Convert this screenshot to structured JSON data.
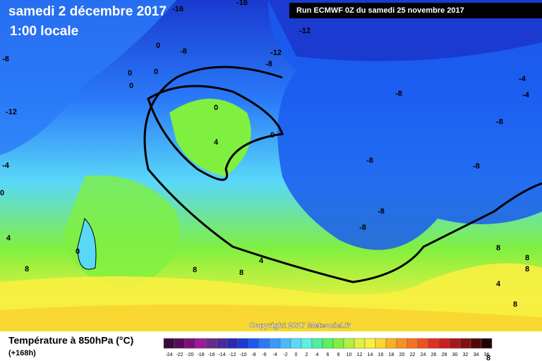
{
  "header": {
    "title": "samedi 2 décembre 2017",
    "subtitle": "1:00 locale",
    "run": "Run ECMWF 0Z du samedi 25 novembre 2017"
  },
  "map": {
    "copyright": "Copyright 2017 Meteociel.fr",
    "labels": [
      "-16",
      "-16",
      "-12",
      "-8",
      "0",
      "-8",
      "-12",
      "-8",
      "0",
      "0",
      "0",
      "-12",
      "-8",
      "-4",
      "-4",
      "0",
      "-8",
      "0",
      "4",
      "-8",
      "-8",
      "-4",
      "0",
      "-8",
      "-8",
      "4",
      "0",
      "8",
      "4",
      "8",
      "8",
      "8",
      "8",
      "8",
      "4",
      "8",
      "8"
    ]
  },
  "legend": {
    "title": "Température à 850hPa (°C)",
    "lead": "(+168h)",
    "ticks": [
      -24,
      -22,
      -20,
      -18,
      -16,
      -14,
      -12,
      -10,
      -8,
      -6,
      -4,
      -2,
      0,
      2,
      4,
      6,
      8,
      10,
      12,
      14,
      16,
      18,
      20,
      22,
      24,
      26,
      28,
      30,
      32,
      34,
      36
    ],
    "colors": [
      "#3a0a3a",
      "#5a0a5a",
      "#7a0f7a",
      "#9a1a9a",
      "#6a2a8a",
      "#4a2a9a",
      "#2a2ab0",
      "#1a3ad0",
      "#1a5af0",
      "#2a7af8",
      "#3a9af8",
      "#4ab8f8",
      "#5ad8f8",
      "#5af0e0",
      "#4af0a0",
      "#5af060",
      "#80f040",
      "#b0f040",
      "#e0f040",
      "#f8f040",
      "#f8d830",
      "#f8b020",
      "#f89020",
      "#f87020",
      "#f05020",
      "#e03020",
      "#c82020",
      "#a81818",
      "#801010",
      "#500808",
      "#200404"
    ]
  }
}
